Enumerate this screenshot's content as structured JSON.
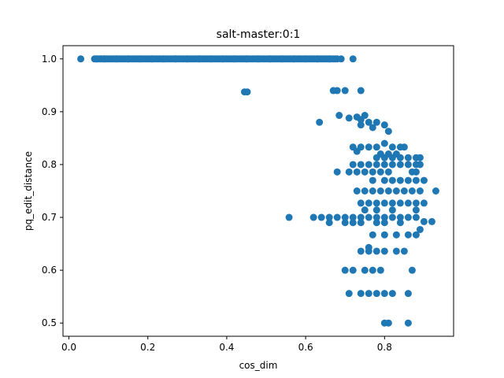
{
  "chart_data": {
    "type": "scatter",
    "title": "salt-master:0:1",
    "xlabel": "cos_dim",
    "ylabel": "pq_edit_distance",
    "xlim": [
      -0.015,
      0.975
    ],
    "ylim": [
      0.475,
      1.025
    ],
    "xticks": [
      0.0,
      0.2,
      0.4,
      0.6,
      0.8
    ],
    "xtick_labels": [
      "0.0",
      "0.2",
      "0.4",
      "0.6",
      "0.8"
    ],
    "yticks": [
      0.5,
      0.6,
      0.7,
      0.8,
      0.9,
      1.0
    ],
    "ytick_labels": [
      "0.5",
      "0.6",
      "0.7",
      "0.8",
      "0.9",
      "1.0"
    ],
    "grid": false,
    "legend": false,
    "marker_color": "#1f77b4",
    "series": [
      {
        "values": [
          [
            0.03,
            1.0
          ],
          [
            0.07,
            1.0
          ],
          [
            0.09,
            1.0
          ],
          [
            0.12,
            1.0
          ],
          [
            0.15,
            1.0
          ],
          [
            0.18,
            1.0
          ],
          [
            0.21,
            1.0
          ],
          [
            0.24,
            1.0
          ],
          [
            0.27,
            1.0
          ],
          [
            0.3,
            1.0
          ],
          [
            0.33,
            1.0
          ],
          [
            0.36,
            1.0
          ],
          [
            0.39,
            1.0
          ],
          [
            0.42,
            1.0
          ],
          [
            0.45,
            1.0
          ],
          [
            0.48,
            1.0
          ],
          [
            0.51,
            1.0
          ],
          [
            0.54,
            1.0
          ],
          [
            0.57,
            1.0
          ],
          [
            0.6,
            1.0
          ],
          [
            0.63,
            1.0
          ],
          [
            0.66,
            1.0
          ],
          [
            0.69,
            1.0
          ],
          [
            0.72,
            1.0
          ],
          [
            0.445,
            0.9375
          ],
          [
            0.452,
            0.9375
          ],
          [
            0.67,
            0.94
          ],
          [
            0.68,
            0.94
          ],
          [
            0.7,
            0.94
          ],
          [
            0.74,
            0.94
          ],
          [
            0.635,
            0.88
          ],
          [
            0.685,
            0.893
          ],
          [
            0.71,
            0.888
          ],
          [
            0.73,
            0.89
          ],
          [
            0.74,
            0.885
          ],
          [
            0.75,
            0.893
          ],
          [
            0.76,
            0.88
          ],
          [
            0.78,
            0.88
          ],
          [
            0.8,
            0.875
          ],
          [
            0.81,
            0.863
          ],
          [
            0.74,
            0.875
          ],
          [
            0.77,
            0.87
          ],
          [
            0.72,
            0.833
          ],
          [
            0.73,
            0.825
          ],
          [
            0.74,
            0.833
          ],
          [
            0.76,
            0.833
          ],
          [
            0.78,
            0.833
          ],
          [
            0.8,
            0.84
          ],
          [
            0.82,
            0.833
          ],
          [
            0.84,
            0.833
          ],
          [
            0.85,
            0.833
          ],
          [
            0.79,
            0.82
          ],
          [
            0.81,
            0.82
          ],
          [
            0.83,
            0.82
          ],
          [
            0.78,
            0.813
          ],
          [
            0.8,
            0.813
          ],
          [
            0.82,
            0.813
          ],
          [
            0.84,
            0.813
          ],
          [
            0.86,
            0.813
          ],
          [
            0.88,
            0.813
          ],
          [
            0.89,
            0.813
          ],
          [
            0.72,
            0.8
          ],
          [
            0.74,
            0.8
          ],
          [
            0.76,
            0.8
          ],
          [
            0.78,
            0.8
          ],
          [
            0.8,
            0.8
          ],
          [
            0.82,
            0.8
          ],
          [
            0.84,
            0.8
          ],
          [
            0.86,
            0.8
          ],
          [
            0.88,
            0.8
          ],
          [
            0.89,
            0.8
          ],
          [
            0.68,
            0.786
          ],
          [
            0.71,
            0.786
          ],
          [
            0.73,
            0.786
          ],
          [
            0.75,
            0.786
          ],
          [
            0.77,
            0.786
          ],
          [
            0.79,
            0.786
          ],
          [
            0.81,
            0.786
          ],
          [
            0.87,
            0.786
          ],
          [
            0.88,
            0.786
          ],
          [
            0.77,
            0.77
          ],
          [
            0.8,
            0.77
          ],
          [
            0.82,
            0.77
          ],
          [
            0.84,
            0.77
          ],
          [
            0.86,
            0.77
          ],
          [
            0.88,
            0.77
          ],
          [
            0.9,
            0.77
          ],
          [
            0.73,
            0.75
          ],
          [
            0.75,
            0.75
          ],
          [
            0.77,
            0.75
          ],
          [
            0.79,
            0.75
          ],
          [
            0.81,
            0.75
          ],
          [
            0.83,
            0.75
          ],
          [
            0.85,
            0.75
          ],
          [
            0.87,
            0.75
          ],
          [
            0.89,
            0.75
          ],
          [
            0.93,
            0.75
          ],
          [
            0.74,
            0.727
          ],
          [
            0.76,
            0.727
          ],
          [
            0.78,
            0.727
          ],
          [
            0.8,
            0.727
          ],
          [
            0.82,
            0.727
          ],
          [
            0.84,
            0.727
          ],
          [
            0.86,
            0.727
          ],
          [
            0.88,
            0.727
          ],
          [
            0.9,
            0.727
          ],
          [
            0.75,
            0.714
          ],
          [
            0.78,
            0.714
          ],
          [
            0.82,
            0.714
          ],
          [
            0.88,
            0.714
          ],
          [
            0.558,
            0.7
          ],
          [
            0.62,
            0.7
          ],
          [
            0.64,
            0.7
          ],
          [
            0.66,
            0.7
          ],
          [
            0.68,
            0.7
          ],
          [
            0.7,
            0.7
          ],
          [
            0.72,
            0.7
          ],
          [
            0.74,
            0.7
          ],
          [
            0.76,
            0.7
          ],
          [
            0.78,
            0.7
          ],
          [
            0.8,
            0.7
          ],
          [
            0.82,
            0.7
          ],
          [
            0.84,
            0.7
          ],
          [
            0.86,
            0.7
          ],
          [
            0.88,
            0.7
          ],
          [
            0.9,
            0.692
          ],
          [
            0.92,
            0.692
          ],
          [
            0.66,
            0.69
          ],
          [
            0.7,
            0.69
          ],
          [
            0.72,
            0.69
          ],
          [
            0.74,
            0.69
          ],
          [
            0.78,
            0.69
          ],
          [
            0.8,
            0.69
          ],
          [
            0.84,
            0.69
          ],
          [
            0.77,
            0.667
          ],
          [
            0.8,
            0.667
          ],
          [
            0.83,
            0.667
          ],
          [
            0.86,
            0.667
          ],
          [
            0.88,
            0.667
          ],
          [
            0.89,
            0.677
          ],
          [
            0.76,
            0.643
          ],
          [
            0.74,
            0.636
          ],
          [
            0.76,
            0.636
          ],
          [
            0.78,
            0.636
          ],
          [
            0.8,
            0.636
          ],
          [
            0.83,
            0.636
          ],
          [
            0.85,
            0.636
          ],
          [
            0.7,
            0.6
          ],
          [
            0.72,
            0.6
          ],
          [
            0.75,
            0.6
          ],
          [
            0.77,
            0.6
          ],
          [
            0.79,
            0.6
          ],
          [
            0.87,
            0.6
          ],
          [
            0.71,
            0.556
          ],
          [
            0.74,
            0.556
          ],
          [
            0.76,
            0.556
          ],
          [
            0.78,
            0.556
          ],
          [
            0.8,
            0.556
          ],
          [
            0.82,
            0.556
          ],
          [
            0.86,
            0.556
          ],
          [
            0.8,
            0.5
          ],
          [
            0.81,
            0.5
          ],
          [
            0.86,
            0.5
          ]
        ],
        "dense_band": {
          "y": 1.0,
          "x_from": 0.065,
          "x_to": 0.68
        }
      }
    ]
  }
}
